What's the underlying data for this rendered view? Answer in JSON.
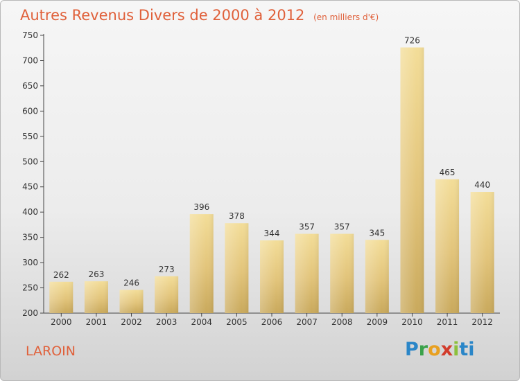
{
  "chart_data": {
    "type": "bar",
    "title": "Autres Revenus Divers de 2000 à 2012",
    "subtitle": "(en milliers d'€)",
    "categories": [
      "2000",
      "2001",
      "2002",
      "2003",
      "2004",
      "2005",
      "2006",
      "2007",
      "2008",
      "2009",
      "2010",
      "2011",
      "2012"
    ],
    "values": [
      262,
      263,
      246,
      273,
      396,
      378,
      344,
      357,
      357,
      345,
      726,
      465,
      440
    ],
    "ylim": [
      200,
      750
    ],
    "yticks": [
      200,
      250,
      300,
      350,
      400,
      450,
      500,
      550,
      600,
      650,
      700,
      750
    ],
    "grid": false,
    "bar_color": "#e6c97c"
  },
  "place_label": "LAROIN",
  "brand": {
    "letters": [
      "P",
      "r",
      "o",
      "x",
      "i",
      "ti"
    ]
  }
}
